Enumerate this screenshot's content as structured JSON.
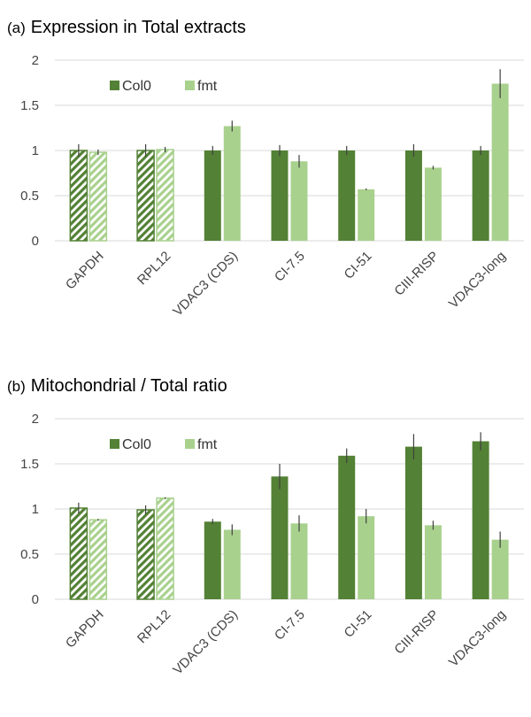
{
  "colors": {
    "col0": "#538135",
    "fmt": "#A9D18E",
    "error": "#404040",
    "axis": "#d9d9d9"
  },
  "chart_data": [
    {
      "type": "bar",
      "panel": "(a)",
      "title": "Expression in Total extracts",
      "categories": [
        "GAPDH",
        "RPL12",
        "VDAC3 (CDS)",
        "CI-7.5",
        "CI-51",
        "CIII-RISP",
        "VDAC3-long"
      ],
      "series": [
        {
          "name": "Col0",
          "values": [
            1.0,
            1.0,
            1.0,
            1.0,
            1.0,
            1.0,
            1.0
          ],
          "errors": [
            0.07,
            0.07,
            0.05,
            0.06,
            0.05,
            0.07,
            0.05
          ],
          "hatched_categories": [
            "GAPDH",
            "RPL12"
          ]
        },
        {
          "name": "fmt",
          "values": [
            0.98,
            1.01,
            1.27,
            0.88,
            0.57,
            0.81,
            1.74
          ],
          "errors": [
            0.03,
            0.03,
            0.06,
            0.07,
            0.01,
            0.02,
            0.16
          ],
          "hatched_categories": [
            "GAPDH",
            "RPL12"
          ]
        }
      ],
      "yticks": [
        "0",
        "0.5",
        "1",
        "1.5",
        "2"
      ],
      "ylim": [
        0,
        2
      ],
      "grid": true,
      "legend": "top-left"
    },
    {
      "type": "bar",
      "panel": "(b)",
      "title": "Mitochondrial / Total ratio",
      "categories": [
        "GAPDH",
        "RPL12",
        "VDAC3 (CDS)",
        "CI-7.5",
        "CI-51",
        "CIII-RISP",
        "VDAC3-long"
      ],
      "series": [
        {
          "name": "Col0",
          "values": [
            1.01,
            0.99,
            0.86,
            1.36,
            1.59,
            1.69,
            1.75
          ],
          "errors": [
            0.06,
            0.05,
            0.03,
            0.14,
            0.08,
            0.14,
            0.1
          ],
          "hatched_categories": [
            "GAPDH",
            "RPL12"
          ]
        },
        {
          "name": "fmt",
          "values": [
            0.88,
            1.12,
            0.77,
            0.84,
            0.92,
            0.82,
            0.66
          ],
          "errors": [
            0.01,
            0.01,
            0.06,
            0.09,
            0.08,
            0.05,
            0.09
          ],
          "hatched_categories": [
            "GAPDH",
            "RPL12"
          ]
        }
      ],
      "yticks": [
        "0",
        "0.5",
        "1",
        "1.5",
        "2"
      ],
      "ylim": [
        0,
        2
      ],
      "grid": true,
      "legend": "top-left"
    }
  ]
}
